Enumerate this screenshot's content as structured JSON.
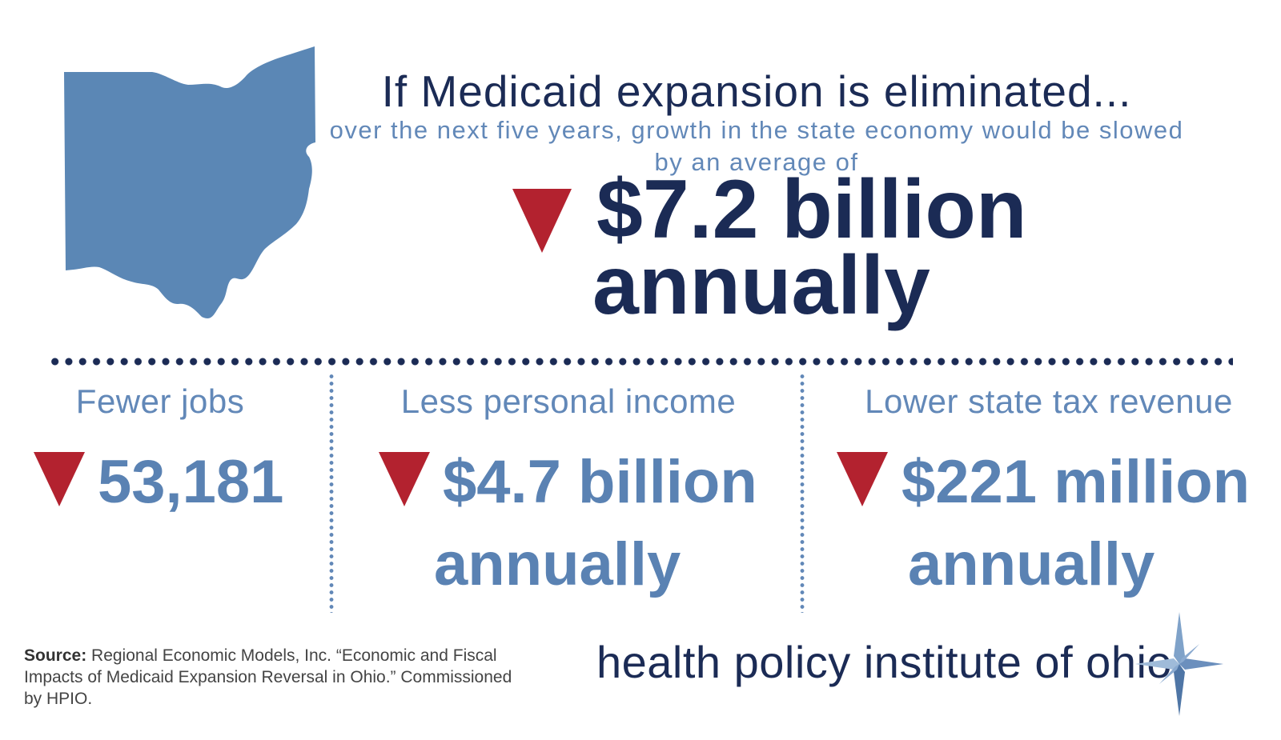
{
  "headline": "If Medicaid expansion is eliminated...",
  "subline": "over the next five years, growth in the state economy would be slowed by an average of",
  "main_figure": {
    "amount": "$7.2 billion",
    "period": "annually"
  },
  "columns": [
    {
      "title": "Fewer jobs",
      "value": "53,181",
      "period": ""
    },
    {
      "title": "Less personal income",
      "value": "$4.7 billion",
      "period": "annually"
    },
    {
      "title": "Lower state tax revenue",
      "value": "$221 million",
      "period": "annually"
    }
  ],
  "source": {
    "label": "Source:",
    "text": "Regional Economic Models, Inc. “Economic and Fiscal Impacts of Medicaid Expansion Reversal in Ohio.” Commissioned by HPIO."
  },
  "organization": "health policy institute of ohio",
  "icons": {
    "down_arrow": "triangle-down-icon",
    "state_map": "ohio-map-icon",
    "logo_star": "compass-star-icon"
  },
  "colors": {
    "navy": "#1b2b55",
    "light_blue": "#6288b8",
    "red": "#b3222f",
    "map_blue": "#5b87b5"
  }
}
